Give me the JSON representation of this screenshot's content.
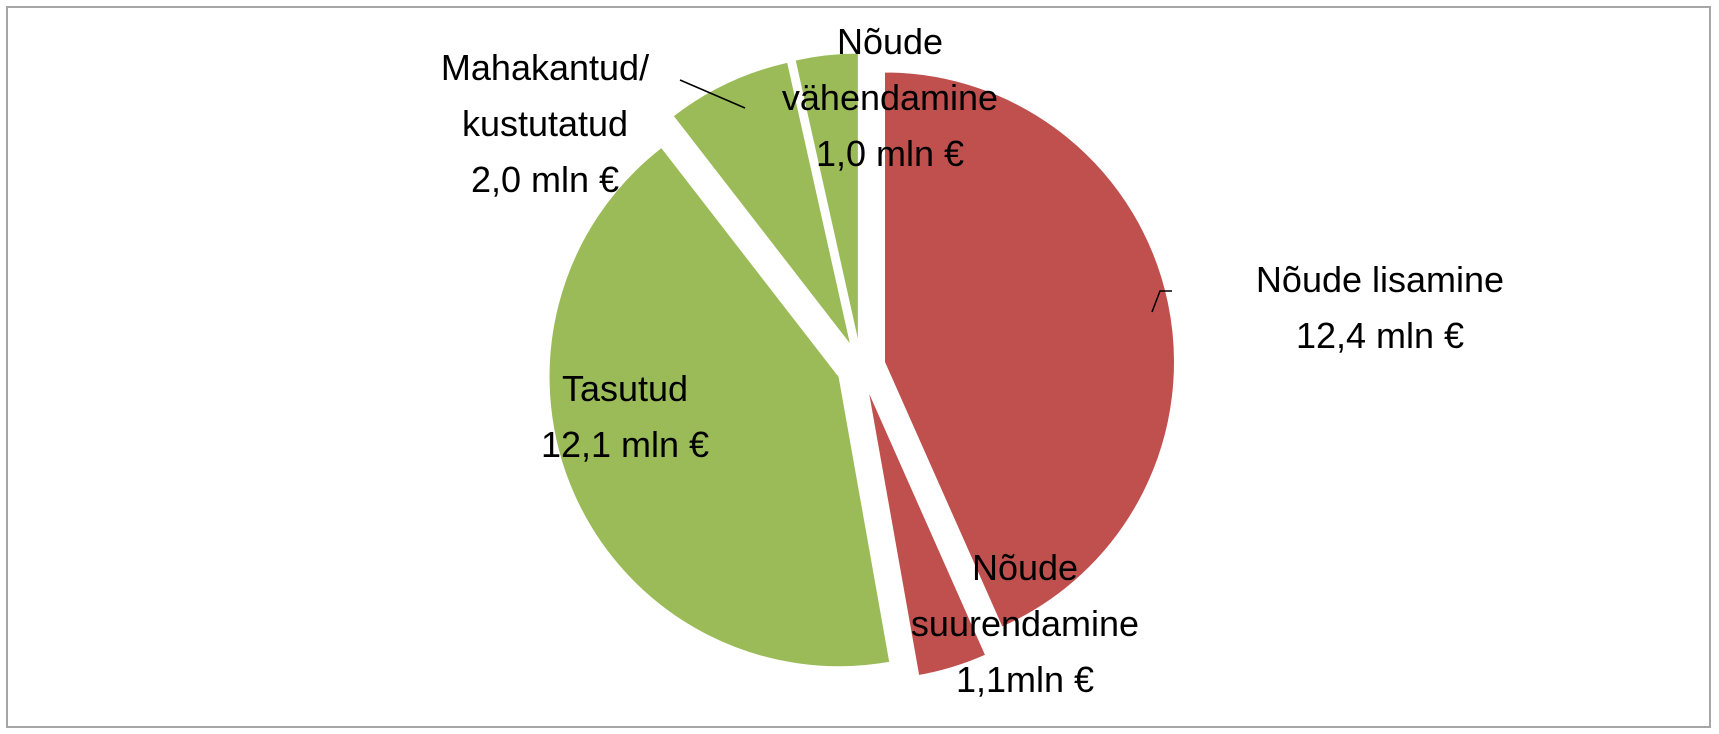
{
  "chart_data": {
    "type": "pie",
    "categories": [
      "Nõude lisamine",
      "Nõude suurendamine",
      "Tasutud",
      "Mahakantud/ kustutatud",
      "Nõude vähendamine"
    ],
    "values": [
      12.4,
      1.1,
      12.1,
      2.0,
      1.0
    ],
    "value_labels": [
      "12,4 mln €",
      "1,1mln €",
      "12,1 mln €",
      "2,0 mln €",
      "1,0 mln €"
    ],
    "colors": [
      "#c0504d",
      "#c0504d",
      "#9bbb59",
      "#9bbb59",
      "#9bbb59"
    ]
  }
}
